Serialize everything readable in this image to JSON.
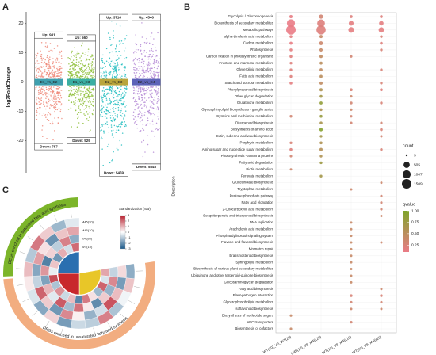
{
  "chart_data": [
    {
      "type": "strip",
      "panel": "A",
      "ylabel": "log2FoldChange",
      "categories": [
        "E1_vs_E2",
        "E1_vs_E3",
        "E2_vs_E3",
        "E2_vs_E4"
      ],
      "up": [
        981,
        560,
        3714,
        4546
      ],
      "up_value_labels": [
        "Up: 981",
        "Up: 560",
        "Up: 3714",
        "Up: 4546"
      ],
      "down": [
        787,
        529,
        5459,
        5845
      ],
      "down_value_labels": [
        "Down: 787",
        "Down: 529",
        "Down: 5459",
        "Down: 5845"
      ],
      "ymax": [
        15,
        14,
        21,
        21
      ],
      "ymin": [
        -21,
        -19,
        -30,
        -28
      ],
      "colors": [
        "#ee8a7a",
        "#8fbf3a",
        "#22bdbf",
        "#b58bd6"
      ],
      "band_colors": [
        "#3f9fae",
        "#3aaea2",
        "#b9a53c",
        "#5d63b8"
      ],
      "ylim": [
        -31,
        24
      ],
      "yticks": [
        -20,
        -10,
        0,
        10,
        20
      ]
    },
    {
      "type": "dotplot",
      "panel": "B",
      "ylabel": "Description",
      "categories": [
        "Glycolysis / Gluconeogenesis",
        "Biosynthesis of secondary metabolites",
        "Metabolic pathways",
        "alpha-Linolenic acid metabolism",
        "Carbon metabolism",
        "Photosynthesis",
        "Carbon fixation in photosynthetic organisms",
        "Fructose and mannose metabolism",
        "Glycerolipid metabolism",
        "Fatty acid metabolism",
        "Starch and sucrose metabolism",
        "Phenylpropanoid biosynthesis",
        "Other glycan degradation",
        "Glutathione metabolism",
        "Glycosphingolipid biosynthesis - ganglio series",
        "Cysteine and methionine metabolism",
        "Diterpenoid biosynthesis",
        "Biosynthesis of amino acids",
        "Cutin, suberine and wax biosynthesis",
        "Porphyrin metabolism",
        "Amino sugar and nucleotide sugar metabolism",
        "Photosynthesis - antenna proteins",
        "Fatty acid degradation",
        "Biotin metabolism",
        "Pyruvate metabolism",
        "Glucosinolate biosynthesis",
        "Tryptophan metabolism",
        "Pentose phosphate pathway",
        "Fatty acid elongation",
        "2-Oxocarboxylic acid metabolism",
        "Sesquiterpenoid and triterpenoid biosynthesis",
        "DNA replication",
        "Arachidonic acid metabolism",
        "Phosphatidylinositol signaling system",
        "Flavone and flavonol biosynthesis",
        "Mismatch repair",
        "Brassinosteroid biosynthesis",
        "Sphingolipid metabolism",
        "Biosynthesis of various plant secondary metabolites",
        "Ubiquinone and other terpenoid-quinone biosynthesis",
        "Glycosaminoglycan degradation",
        "Fatty acid biosynthesis",
        "Plant-pathogen interaction",
        "Glycerophospholipid metabolism",
        "Isoflavonoid biosynthesis",
        "Biosynthesis of nucleotide sugars",
        "ABC transporters",
        "Biosynthesis of cofactors"
      ],
      "series": [
        {
          "name": "WT(10)_VS_WT(20)",
          "count": [
            60,
            1000,
            1509,
            40,
            50,
            40,
            40,
            30,
            30,
            30,
            40,
            null,
            null,
            null,
            null,
            30,
            null,
            null,
            null,
            30,
            40,
            20,
            null,
            15,
            null,
            null,
            null,
            null,
            null,
            null,
            null,
            null,
            null,
            null,
            null,
            null,
            null,
            null,
            null,
            null,
            null,
            null,
            null,
            null,
            null,
            20,
            null,
            20
          ],
          "qvalue": [
            0.12,
            0.1,
            0.1,
            0.15,
            0.12,
            0.15,
            0.18,
            0.2,
            0.2,
            0.2,
            0.15,
            null,
            null,
            null,
            null,
            0.3,
            null,
            null,
            null,
            0.25,
            0.2,
            0.3,
            null,
            0.35,
            null,
            null,
            null,
            null,
            null,
            null,
            null,
            null,
            null,
            null,
            null,
            null,
            null,
            null,
            null,
            null,
            null,
            null,
            null,
            null,
            null,
            0.4,
            null,
            0.4
          ]
        },
        {
          "name": "M45(10)_VS_M45(20)",
          "count": [
            150,
            900,
            1400,
            60,
            120,
            70,
            60,
            50,
            50,
            50,
            60,
            60,
            40,
            50,
            30,
            40,
            40,
            80,
            30,
            40,
            60,
            30,
            30,
            null,
            30,
            null,
            null,
            null,
            null,
            null,
            null,
            null,
            null,
            null,
            null,
            null,
            null,
            null,
            null,
            null,
            null,
            null,
            null,
            null,
            null,
            null,
            null,
            null
          ],
          "qvalue": [
            0.3,
            0.2,
            0.2,
            0.4,
            0.35,
            0.4,
            0.45,
            0.5,
            0.45,
            0.5,
            0.45,
            0.6,
            0.7,
            0.85,
            0.6,
            0.8,
            0.65,
            0.95,
            0.7,
            0.6,
            0.55,
            0.6,
            0.75,
            null,
            0.7,
            null,
            null,
            null,
            null,
            null,
            null,
            null,
            null,
            null,
            null,
            null,
            null,
            null,
            null,
            null,
            null,
            null,
            null,
            null,
            null,
            null,
            null,
            null
          ]
        },
        {
          "name": "WT(10)_VS_M45(10)",
          "count": [
            40,
            250,
            400,
            null,
            null,
            null,
            20,
            null,
            null,
            null,
            null,
            40,
            20,
            30,
            20,
            20,
            20,
            null,
            null,
            null,
            null,
            null,
            null,
            null,
            null,
            null,
            15,
            null,
            null,
            null,
            null,
            15,
            15,
            15,
            15,
            15,
            15,
            15,
            15,
            15,
            15,
            null,
            30,
            20,
            15,
            null,
            20,
            null
          ],
          "qvalue": [
            0.2,
            0.15,
            0.15,
            null,
            null,
            null,
            0.3,
            null,
            null,
            null,
            null,
            0.25,
            0.35,
            0.3,
            0.35,
            0.3,
            0.3,
            null,
            null,
            null,
            null,
            null,
            null,
            null,
            null,
            null,
            0.35,
            null,
            null,
            null,
            null,
            0.4,
            0.4,
            0.4,
            0.4,
            0.4,
            0.4,
            0.4,
            0.4,
            0.4,
            0.4,
            null,
            0.25,
            0.3,
            0.35,
            null,
            0.3,
            null
          ]
        },
        {
          "name": "WT(20)_VS_M45(20)",
          "count": [
            40,
            200,
            350,
            30,
            40,
            30,
            null,
            null,
            30,
            null,
            30,
            40,
            null,
            30,
            null,
            null,
            20,
            40,
            20,
            null,
            30,
            null,
            null,
            null,
            null,
            15,
            null,
            20,
            20,
            20,
            15,
            null,
            null,
            null,
            15,
            null,
            null,
            null,
            null,
            null,
            null,
            15,
            30,
            20,
            15,
            null,
            null,
            null
          ],
          "qvalue": [
            0.2,
            0.15,
            0.15,
            0.25,
            0.2,
            0.25,
            null,
            null,
            0.25,
            null,
            0.25,
            0.2,
            null,
            0.25,
            null,
            null,
            0.3,
            0.25,
            0.3,
            null,
            0.25,
            null,
            null,
            null,
            null,
            0.35,
            null,
            0.3,
            0.3,
            0.3,
            0.35,
            null,
            null,
            null,
            0.35,
            null,
            null,
            null,
            null,
            null,
            null,
            0.35,
            0.25,
            0.3,
            0.35,
            null,
            null,
            null
          ]
        }
      ],
      "size_title": "count",
      "size_ticks": [
        3,
        505,
        1007,
        1509
      ],
      "color_title": "qvalue",
      "qlim": [
        0.1,
        1.0
      ],
      "color_ticks": [
        {
          "value": 1.0,
          "label": "1.00"
        },
        {
          "value": 0.75,
          "label": "0.75"
        },
        {
          "value": 0.5,
          "label": "0.50"
        },
        {
          "value": 0.25,
          "label": "0.25"
        }
      ]
    },
    {
      "type": "circular_heatmap",
      "panel": "C",
      "groups": [
        {
          "label": "DEGs enriched in unsaturated fatty acid synthesis",
          "color": "#f2ad80",
          "sectors": 12
        },
        {
          "label": "DEGs enriched in saturated fatty acid synthesis",
          "color": "#7cb52a",
          "sectors": 6
        }
      ],
      "rings": [
        "WT(10)",
        "WT(20)",
        "M45(10)",
        "M45(20)"
      ],
      "matrix": [
        [
          1.2,
          -0.5,
          2.1,
          -1.3,
          0.4,
          1.8,
          -2.2,
          0.9,
          -0.7,
          1.5,
          -1.1,
          2.4,
          -0.3,
          0.8,
          -1.9,
          1.1,
          -0.6,
          2.0
        ],
        [
          -0.8,
          1.6,
          -1.4,
          0.7,
          -2.1,
          0.3,
          1.9,
          -1.2,
          2.2,
          -0.4,
          1.0,
          -1.7,
          1.4,
          -2.3,
          0.6,
          -0.9,
          1.7,
          -1.5
        ],
        [
          0.5,
          -1.8,
          0.9,
          2.3,
          -0.6,
          -1.4,
          0.2,
          1.6,
          -1.9,
          0.7,
          2.1,
          -0.8,
          -1.6,
          1.3,
          0.4,
          -2.0,
          0.8,
          1.2
        ],
        [
          -1.5,
          0.8,
          -0.2,
          -1.1,
          1.7,
          -0.9,
          -0.7,
          -1.8,
          0.6,
          -1.6,
          -0.5,
          0.3,
          0.9,
          -1.0,
          1.8,
          0.7,
          -1.3,
          -0.4
        ]
      ],
      "legend_title": "Standardization (row)",
      "clim": [
        -3,
        3
      ],
      "cticks": [
        3,
        2,
        1,
        0,
        -1,
        -2,
        -3
      ]
    }
  ]
}
